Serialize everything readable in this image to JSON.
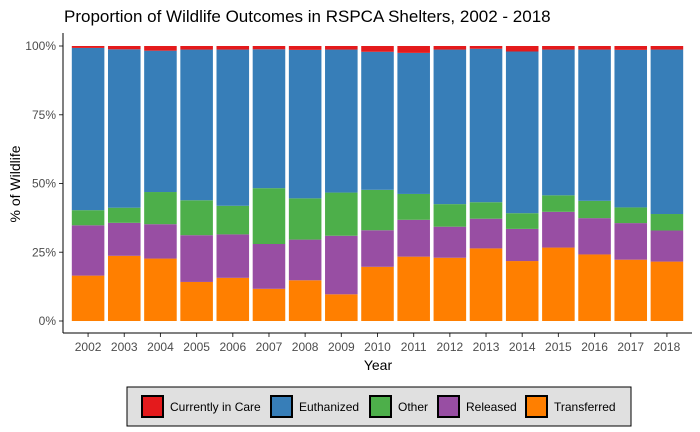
{
  "chart_data": {
    "type": "bar",
    "stacked": true,
    "normalized": true,
    "title": "Proportion of Wildlife Outcomes in RSPCA Shelters, 2002 - 2018",
    "xlabel": "Year",
    "ylabel": "% of Wildlife",
    "ylim": [
      0,
      1
    ],
    "y_ticks": [
      0,
      0.25,
      0.5,
      0.75,
      1.0
    ],
    "y_tick_labels": [
      "0%",
      "25%",
      "50%",
      "75%",
      "100%"
    ],
    "grid": false,
    "legend_position": "bottom",
    "categories": [
      "2002",
      "2003",
      "2004",
      "2005",
      "2006",
      "2007",
      "2008",
      "2009",
      "2010",
      "2011",
      "2012",
      "2013",
      "2014",
      "2015",
      "2016",
      "2017",
      "2018"
    ],
    "series": [
      {
        "name": "Transferred",
        "color": "#FF7F00",
        "values": [
          0.165,
          0.237,
          0.227,
          0.142,
          0.157,
          0.117,
          0.148,
          0.097,
          0.197,
          0.234,
          0.23,
          0.264,
          0.218,
          0.267,
          0.242,
          0.223,
          0.216
        ]
      },
      {
        "name": "Released",
        "color": "#984EA3",
        "values": [
          0.183,
          0.12,
          0.125,
          0.17,
          0.158,
          0.163,
          0.148,
          0.213,
          0.133,
          0.134,
          0.113,
          0.108,
          0.117,
          0.13,
          0.132,
          0.133,
          0.113
        ]
      },
      {
        "name": "Other",
        "color": "#4DAF4A",
        "values": [
          0.055,
          0.055,
          0.117,
          0.127,
          0.104,
          0.203,
          0.15,
          0.157,
          0.147,
          0.094,
          0.082,
          0.06,
          0.057,
          0.06,
          0.063,
          0.057,
          0.06
        ]
      },
      {
        "name": "Euthanized",
        "color": "#377EB8",
        "values": [
          0.59,
          0.576,
          0.514,
          0.548,
          0.568,
          0.505,
          0.54,
          0.52,
          0.502,
          0.513,
          0.562,
          0.558,
          0.588,
          0.53,
          0.55,
          0.573,
          0.598
        ]
      },
      {
        "name": "Currently in Care",
        "color": "#E41A1C",
        "values": [
          0.007,
          0.012,
          0.017,
          0.013,
          0.013,
          0.012,
          0.014,
          0.013,
          0.021,
          0.025,
          0.013,
          0.01,
          0.02,
          0.013,
          0.013,
          0.014,
          0.013
        ]
      }
    ],
    "legend_order": [
      "Currently in Care",
      "Euthanized",
      "Other",
      "Released",
      "Transferred"
    ]
  }
}
